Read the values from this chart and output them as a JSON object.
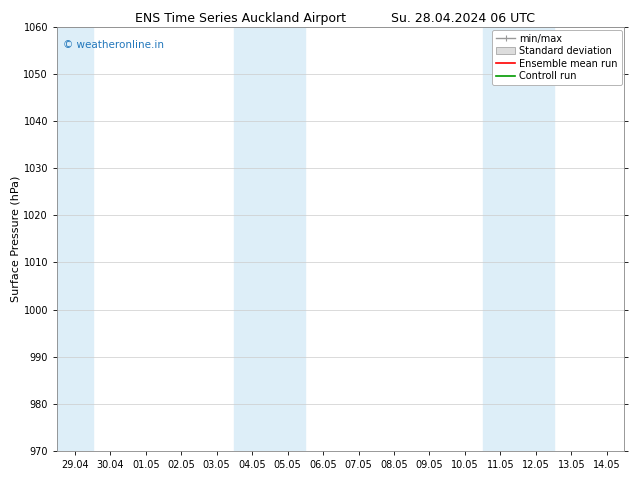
{
  "title_left": "ENS Time Series Auckland Airport",
  "title_right": "Su. 28.04.2024 06 UTC",
  "ylabel": "Surface Pressure (hPa)",
  "ylim": [
    970,
    1060
  ],
  "yticks": [
    970,
    980,
    990,
    1000,
    1010,
    1020,
    1030,
    1040,
    1050,
    1060
  ],
  "x_labels": [
    "29.04",
    "30.04",
    "01.05",
    "02.05",
    "03.05",
    "04.05",
    "05.05",
    "06.05",
    "07.05",
    "08.05",
    "09.05",
    "10.05",
    "11.05",
    "12.05",
    "13.05",
    "14.05"
  ],
  "x_values": [
    0,
    1,
    2,
    3,
    4,
    5,
    6,
    7,
    8,
    9,
    10,
    11,
    12,
    13,
    14,
    15
  ],
  "shaded_bands": [
    {
      "xmin": -0.5,
      "xmax": 0.5
    },
    {
      "xmin": 4.5,
      "xmax": 6.5
    },
    {
      "xmin": 11.5,
      "xmax": 13.5
    }
  ],
  "shaded_color": "#ddeef8",
  "background_color": "#ffffff",
  "plot_bg_color": "#ffffff",
  "watermark_text": "© weatheronline.in",
  "watermark_color": "#2277bb",
  "legend_labels": [
    "min/max",
    "Standard deviation",
    "Ensemble mean run",
    "Controll run"
  ],
  "legend_colors": [
    "#aaaaaa",
    "#cccccc",
    "#ff0000",
    "#009900"
  ],
  "title_fontsize": 9,
  "axis_label_fontsize": 8,
  "tick_fontsize": 7,
  "watermark_fontsize": 7.5,
  "legend_fontsize": 7,
  "font_family": "DejaVu Sans"
}
